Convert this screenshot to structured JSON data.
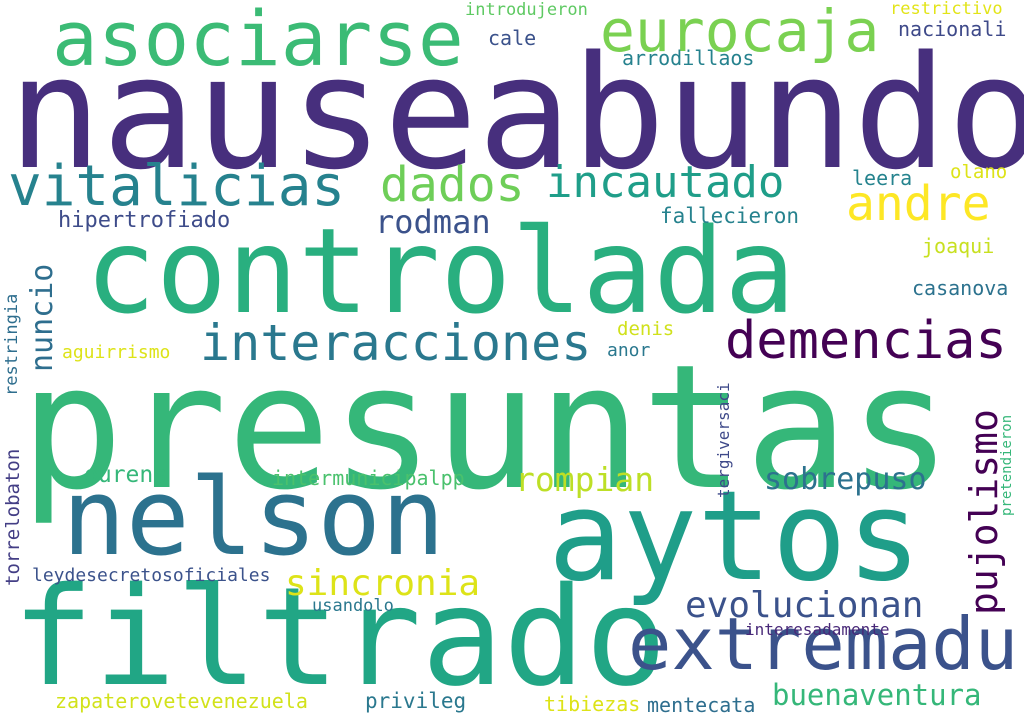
{
  "colors": {
    "background": "#ffffff",
    "purple": "#472f7d",
    "dark_purple": "#440154",
    "indigo": "#3b528b",
    "blue": "#31688e",
    "teal_blue": "#26828e",
    "teal": "#1f9e89",
    "green_teal": "#29af7f",
    "green": "#35b779",
    "light_green": "#6ece58",
    "lime": "#b5de2b",
    "yellow": "#fde725"
  },
  "words": [
    {
      "text": "nauseabundo",
      "color": "#472f7d"
    },
    {
      "text": "presuntas",
      "color": "#35b779"
    },
    {
      "text": "controlada",
      "color": "#29af7f"
    },
    {
      "text": "aytos",
      "color": "#1f9e89"
    },
    {
      "text": "filtrado",
      "color": "#21a685"
    },
    {
      "text": "nelson",
      "color": "#2c728e"
    },
    {
      "text": "asociarse",
      "color": "#3bbb75"
    },
    {
      "text": "extremadu",
      "color": "#3b528b"
    },
    {
      "text": "eurocaja",
      "color": "#7ad151"
    },
    {
      "text": "vitalicias",
      "color": "#26828e"
    },
    {
      "text": "dados",
      "color": "#6ece58"
    },
    {
      "text": "incautado",
      "color": "#1f9e89"
    },
    {
      "text": "andre",
      "color": "#fde725"
    },
    {
      "text": "interacciones",
      "color": "#2a788e"
    },
    {
      "text": "demencias",
      "color": "#440154"
    },
    {
      "text": "evolucionan",
      "color": "#3b528b"
    },
    {
      "text": "sincronia",
      "color": "#dde318"
    },
    {
      "text": "pujolismo",
      "color": "#440154"
    },
    {
      "text": "rompian",
      "color": "#bddf26"
    },
    {
      "text": "buenaventura",
      "color": "#35b779"
    },
    {
      "text": "sobrepuso",
      "color": "#2c728e"
    },
    {
      "text": "rodman",
      "color": "#3b528b"
    },
    {
      "text": "nuncio",
      "color": "#2e6e8e"
    },
    {
      "text": "hipertrofiado",
      "color": "#3e4c8a"
    },
    {
      "text": "fallecieron",
      "color": "#26828e"
    },
    {
      "text": "casanova",
      "color": "#2c728e"
    },
    {
      "text": "ourens",
      "color": "#35b779"
    },
    {
      "text": "intermunicipalpp",
      "color": "#4ac16d"
    },
    {
      "text": "leydesecretosoficiales",
      "color": "#3b528b"
    },
    {
      "text": "zapaterovetevenezuela",
      "color": "#d2e21b"
    },
    {
      "text": "privileg",
      "color": "#2a788e"
    },
    {
      "text": "tibiezas",
      "color": "#dde318"
    },
    {
      "text": "mentecata",
      "color": "#2e6e8e"
    },
    {
      "text": "interesadamente",
      "color": "#482878"
    },
    {
      "text": "usandolo",
      "color": "#2a788e"
    },
    {
      "text": "aguirrismo",
      "color": "#dde318"
    },
    {
      "text": "denis",
      "color": "#d0e11c"
    },
    {
      "text": "anor",
      "color": "#2a788e"
    },
    {
      "text": "joaqui",
      "color": "#c8e020"
    },
    {
      "text": "leera",
      "color": "#25838e"
    },
    {
      "text": "olano",
      "color": "#dde318"
    },
    {
      "text": "nacionali",
      "color": "#3e4989"
    },
    {
      "text": "arrodillaos",
      "color": "#26828e"
    },
    {
      "text": "cale",
      "color": "#3b528b"
    },
    {
      "text": "introdujeron",
      "color": "#5ec962"
    },
    {
      "text": "restrictivo",
      "color": "#e2e418"
    },
    {
      "text": "restringia",
      "color": "#2e6e8e"
    },
    {
      "text": "torrelobaton",
      "color": "#433e85"
    },
    {
      "text": "tergiversaci",
      "color": "#3e4989"
    },
    {
      "text": "pretendieron",
      "color": "#35b779"
    }
  ]
}
